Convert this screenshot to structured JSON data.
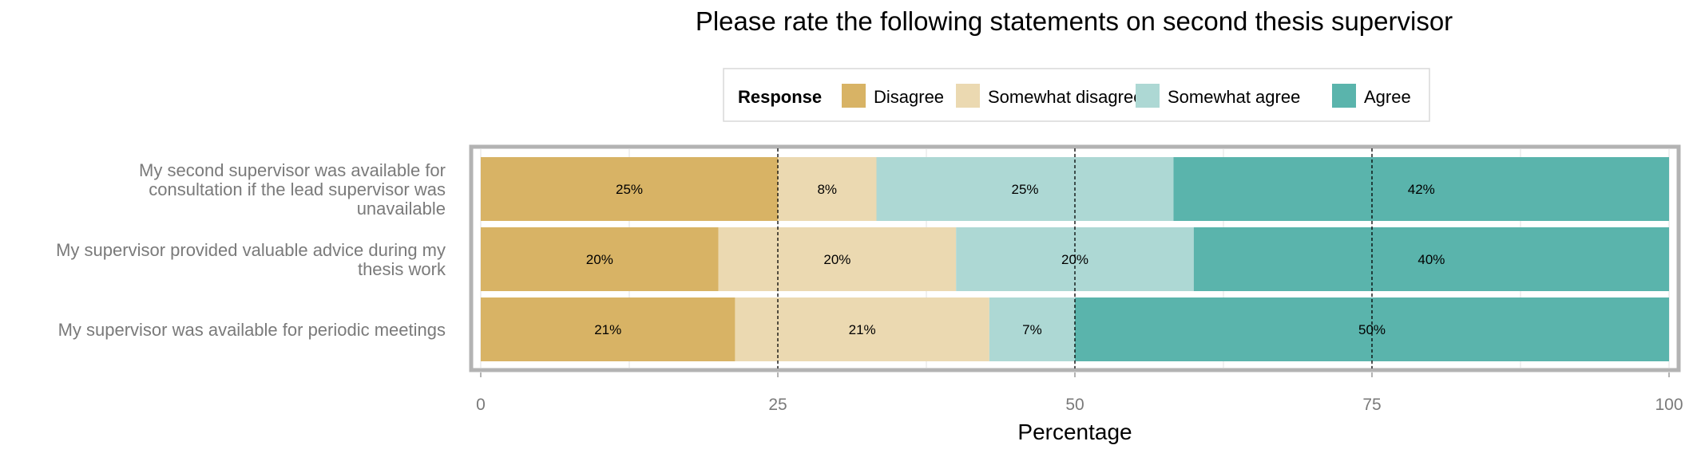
{
  "chart_data": {
    "type": "bar",
    "orientation": "horizontal",
    "stacked": true,
    "title": "Please rate the following statements on second thesis supervisor",
    "xlabel": "Percentage",
    "ylabel": "",
    "xlim": [
      0,
      100
    ],
    "x_ticks": [
      "0",
      "25",
      "50",
      "75",
      "100"
    ],
    "reference_lines": [
      25,
      50,
      75
    ],
    "grid": true,
    "legend": {
      "title": "Response",
      "position": "top"
    },
    "categories": [
      "My second supervisor was available for consultation if the lead supervisor was unavailable",
      "My supervisor provided valuable advice during my thesis work",
      "My supervisor was available for periodic meetings"
    ],
    "category_lines": [
      [
        "My second supervisor was available for",
        "consultation if the lead supervisor was",
        "unavailable"
      ],
      [
        "My supervisor provided valuable advice during my",
        "thesis work"
      ],
      [
        "My supervisor was available for periodic meetings"
      ]
    ],
    "series": [
      {
        "name": "Disagree",
        "color": "#D8B365",
        "values": [
          25,
          20,
          21.4
        ],
        "labels": [
          "25%",
          "20%",
          "21%"
        ]
      },
      {
        "name": "Somewhat disagree",
        "color": "#EBD9B1",
        "values": [
          8.3,
          20,
          21.4
        ],
        "labels": [
          "8%",
          "20%",
          "21%"
        ]
      },
      {
        "name": "Somewhat agree",
        "color": "#ADD8D4",
        "values": [
          25,
          20,
          7.2
        ],
        "labels": [
          "25%",
          "20%",
          "7%"
        ]
      },
      {
        "name": "Agree",
        "color": "#5AB4AC",
        "values": [
          41.7,
          40,
          50
        ],
        "labels": [
          "42%",
          "40%",
          "50%"
        ]
      }
    ]
  }
}
